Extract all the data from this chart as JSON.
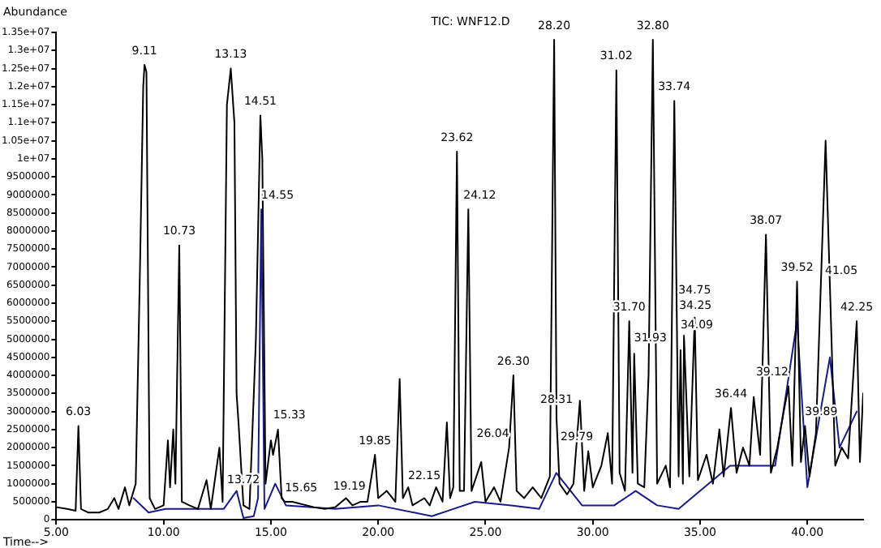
{
  "chart_data": {
    "type": "line",
    "title": "TIC: WNF12.D",
    "ylabel": "Abundance",
    "xlabel": "Time-->",
    "xlim": [
      5,
      42.6
    ],
    "xticks": [
      {
        "value": 5,
        "label": "5.00"
      },
      {
        "value": 10,
        "label": "10.00"
      },
      {
        "value": 15,
        "label": "15.00"
      },
      {
        "value": 20,
        "label": "20.00"
      },
      {
        "value": 25,
        "label": "25.00"
      },
      {
        "value": 30,
        "label": "30.00"
      },
      {
        "value": 35,
        "label": "35.00"
      },
      {
        "value": 40,
        "label": "40.00"
      }
    ],
    "ylim": [
      0,
      13500000
    ],
    "yticks": [
      0,
      500000,
      1000000,
      1500000,
      2000000,
      2500000,
      3000000,
      3500000,
      4000000,
      4500000,
      5000000,
      5500000,
      6000000,
      6500000,
      7000000,
      7500000,
      8000000,
      8500000,
      9000000,
      9500000,
      {
        "value": 10000000,
        "label": "1e+07"
      },
      {
        "value": 10500000,
        "label": "1.05e+07"
      },
      {
        "value": 11000000,
        "label": "1.1e+07"
      },
      {
        "value": 11500000,
        "label": "1.15e+07"
      },
      {
        "value": 12000000,
        "label": "1.2e+07"
      },
      {
        "value": 12500000,
        "label": "1.25e+07"
      },
      {
        "value": 13000000,
        "label": "1.3e+07"
      },
      {
        "value": 13500000,
        "label": "1.35e+07"
      }
    ],
    "grid": false,
    "legend": false,
    "marker": "none",
    "line_style": "solid",
    "series": [
      {
        "color": "#000000",
        "x": [
          5.0,
          5.5,
          5.9,
          6.03,
          6.15,
          6.5,
          7.0,
          7.4,
          7.7,
          7.9,
          8.2,
          8.4,
          8.7,
          8.9,
          9.05,
          9.11,
          9.2,
          9.35,
          9.6,
          10.0,
          10.2,
          10.3,
          10.45,
          10.55,
          10.73,
          10.85,
          11.2,
          11.6,
          12.0,
          12.2,
          12.6,
          12.75,
          12.95,
          13.13,
          13.3,
          13.4,
          13.5,
          13.72,
          14.0,
          14.3,
          14.51,
          14.6,
          14.75,
          15.0,
          15.1,
          15.33,
          15.5,
          15.65,
          16.0,
          17.0,
          17.5,
          18.0,
          18.5,
          18.8,
          19.19,
          19.5,
          19.85,
          20.0,
          20.4,
          20.8,
          21.0,
          21.15,
          21.4,
          21.6,
          22.15,
          22.4,
          22.7,
          23.0,
          23.2,
          23.35,
          23.5,
          23.67,
          23.8,
          24.0,
          24.2,
          24.35,
          24.8,
          25.0,
          25.4,
          25.7,
          26.1,
          26.3,
          26.45,
          26.8,
          27.2,
          27.6,
          28.0,
          28.2,
          28.31,
          28.45,
          28.8,
          29.1,
          29.4,
          29.6,
          29.79,
          30.0,
          30.4,
          30.7,
          30.9,
          31.1,
          31.25,
          31.5,
          31.7,
          31.85,
          31.93,
          32.1,
          32.4,
          32.6,
          32.8,
          33.0,
          33.4,
          33.6,
          33.8,
          34.0,
          34.09,
          34.2,
          34.25,
          34.5,
          34.75,
          34.9,
          35.3,
          35.6,
          35.9,
          36.1,
          36.44,
          36.7,
          37.0,
          37.3,
          37.5,
          37.8,
          38.07,
          38.3,
          38.6,
          38.9,
          39.12,
          39.3,
          39.52,
          39.7,
          39.89,
          40.1,
          40.4,
          40.6,
          40.85,
          41.05,
          41.3,
          41.6,
          41.9,
          42.3,
          42.45,
          42.6
        ],
        "values": [
          350000,
          300000,
          250000,
          2600000,
          300000,
          200000,
          200000,
          300000,
          600000,
          300000,
          900000,
          400000,
          1000000,
          7000000,
          12000000,
          12600000,
          12400000,
          600000,
          300000,
          400000,
          2200000,
          900000,
          2500000,
          1000000,
          7600000,
          500000,
          400000,
          300000,
          1100000,
          300000,
          2000000,
          500000,
          11500000,
          12500000,
          11000000,
          3500000,
          2600000,
          400000,
          300000,
          5000000,
          11200000,
          10000000,
          1000000,
          2200000,
          1800000,
          2500000,
          600000,
          500000,
          500000,
          350000,
          300000,
          350000,
          600000,
          400000,
          500000,
          500000,
          1800000,
          600000,
          800000,
          500000,
          3900000,
          600000,
          900000,
          400000,
          600000,
          400000,
          900000,
          500000,
          2700000,
          600000,
          900000,
          10200000,
          800000,
          800000,
          8600000,
          800000,
          1600000,
          500000,
          900000,
          500000,
          2000000,
          4000000,
          800000,
          600000,
          900000,
          600000,
          1200000,
          13300000,
          2800000,
          1000000,
          700000,
          1000000,
          3300000,
          800000,
          1900000,
          900000,
          1500000,
          2400000,
          1000000,
          12450000,
          1300000,
          800000,
          5500000,
          1300000,
          4600000,
          1000000,
          900000,
          4000000,
          13300000,
          1000000,
          1500000,
          900000,
          11600000,
          1200000,
          4700000,
          1000000,
          5100000,
          1200000,
          5600000,
          1100000,
          1800000,
          1000000,
          2500000,
          1200000,
          3100000,
          1300000,
          2000000,
          1500000,
          3400000,
          1800000,
          7900000,
          1300000,
          2000000,
          3000000,
          3700000,
          1500000,
          6600000,
          1600000,
          2600000,
          1200000,
          2400000,
          6000000,
          10500000,
          6500000,
          1500000,
          2000000,
          1700000,
          5500000,
          1600000,
          3500000
        ]
      },
      {
        "color": "#1a1a8c",
        "x": [
          8.6,
          9.3,
          10.1,
          10.8,
          12.8,
          13.4,
          13.72,
          14.2,
          14.4,
          14.55,
          14.7,
          15.2,
          15.7,
          18.0,
          20.0,
          22.5,
          23.5,
          24.5,
          26.2,
          27.5,
          28.3,
          29.5,
          31.0,
          32.0,
          33.0,
          34.0,
          35.0,
          36.4,
          37.5,
          38.5,
          39.52,
          40.0,
          41.05,
          41.5,
          42.3
        ],
        "values": [
          600000,
          200000,
          300000,
          300000,
          300000,
          800000,
          50000,
          100000,
          600000,
          8600000,
          300000,
          1000000,
          400000,
          300000,
          400000,
          100000,
          300000,
          500000,
          400000,
          300000,
          1300000,
          400000,
          400000,
          800000,
          400000,
          300000,
          800000,
          1500000,
          1500000,
          1500000,
          5500000,
          900000,
          4500000,
          2000000,
          3000000
        ]
      }
    ],
    "annotations": [
      {
        "text": "6.03",
        "x": 6.03,
        "y": 2600000
      },
      {
        "text": "9.11",
        "x": 9.11,
        "y": 12600000
      },
      {
        "text": "10.73",
        "x": 10.73,
        "y": 7600000
      },
      {
        "text": "13.13",
        "x": 13.13,
        "y": 12500000
      },
      {
        "text": "14.51",
        "x": 14.51,
        "y": 11200000
      },
      {
        "text": "14.55",
        "x": 14.55,
        "y": 8600000
      },
      {
        "text": "15.33",
        "x": 15.33,
        "y": 2500000
      },
      {
        "text": "13.72",
        "x": 13.72,
        "y": 400000
      },
      {
        "text": "15.65",
        "x": 15.65,
        "y": 500000
      },
      {
        "text": "19.19",
        "x": 19.19,
        "y": 500000
      },
      {
        "text": "19.85",
        "x": 19.85,
        "y": 1800000
      },
      {
        "text": "22.15",
        "x": 22.15,
        "y": 600000
      },
      {
        "text": "23.62",
        "x": 23.67,
        "y": 10200000
      },
      {
        "text": "24.12",
        "x": 24.2,
        "y": 8600000
      },
      {
        "text": "26.04",
        "x": 26.1,
        "y": 2000000
      },
      {
        "text": "26.30",
        "x": 26.3,
        "y": 4000000
      },
      {
        "text": "28.20",
        "x": 28.2,
        "y": 13300000
      },
      {
        "text": "28.31",
        "x": 28.31,
        "y": 2800000
      },
      {
        "text": "29.79",
        "x": 29.79,
        "y": 1900000
      },
      {
        "text": "31.02",
        "x": 31.1,
        "y": 12450000
      },
      {
        "text": "31.70",
        "x": 31.7,
        "y": 5500000
      },
      {
        "text": "31.93",
        "x": 31.93,
        "y": 4600000
      },
      {
        "text": "32.80",
        "x": 32.8,
        "y": 13300000
      },
      {
        "text": "33.74",
        "x": 33.8,
        "y": 11600000
      },
      {
        "text": "34.09",
        "x": 34.09,
        "y": 4700000
      },
      {
        "text": "34.25",
        "x": 34.25,
        "y": 5100000
      },
      {
        "text": "34.75",
        "x": 34.75,
        "y": 5600000
      },
      {
        "text": "36.44",
        "x": 36.44,
        "y": 3100000
      },
      {
        "text": "38.07",
        "x": 38.07,
        "y": 7900000
      },
      {
        "text": "39.12",
        "x": 39.12,
        "y": 3700000
      },
      {
        "text": "39.52",
        "x": 39.52,
        "y": 6600000
      },
      {
        "text": "39.89",
        "x": 39.89,
        "y": 2600000
      },
      {
        "text": "41.05",
        "x": 41.05,
        "y": 6500000
      },
      {
        "text": "42.25",
        "x": 42.3,
        "y": 5500000
      }
    ]
  }
}
